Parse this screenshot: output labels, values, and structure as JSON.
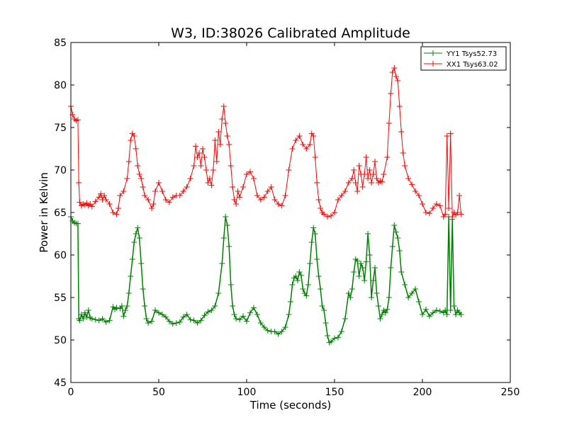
{
  "chart_data": {
    "type": "line",
    "title": "W3, ID:38026 Calibrated Amplitude",
    "xlabel": "Time (seconds)",
    "ylabel": "Power in Kelvin",
    "xlim": [
      0,
      250
    ],
    "ylim": [
      45,
      85
    ],
    "xticks": [
      0,
      50,
      100,
      150,
      200,
      250
    ],
    "yticks": [
      45,
      50,
      55,
      60,
      65,
      70,
      75,
      80,
      85
    ],
    "grid": false,
    "legend_position": "top-right",
    "marker": "plus",
    "series": [
      {
        "name": "YY1 Tsys52.73",
        "color": "#008000",
        "x": [
          0,
          1,
          2,
          3,
          4,
          4.5,
          5,
          6,
          7,
          8,
          9,
          10,
          11,
          12,
          14,
          16,
          18,
          20,
          22,
          24,
          25,
          26,
          28,
          29,
          30,
          31,
          32,
          33,
          34,
          35,
          36,
          37,
          38,
          39,
          40,
          41,
          42,
          43,
          44,
          46,
          48,
          50,
          52,
          54,
          56,
          58,
          60,
          62,
          64,
          66,
          68,
          70,
          72,
          74,
          76,
          78,
          80,
          82,
          84,
          86,
          87,
          88,
          89,
          90,
          91,
          92,
          93,
          94,
          96,
          98,
          100,
          102,
          104,
          106,
          108,
          110,
          112,
          114,
          116,
          118,
          120,
          122,
          124,
          125,
          126,
          127,
          128,
          129,
          130,
          131,
          132,
          133,
          134,
          135,
          136,
          137,
          138,
          139,
          140,
          141,
          142,
          143,
          144,
          145,
          146,
          147,
          148,
          150,
          152,
          154,
          156,
          158,
          159,
          160,
          161,
          162,
          163,
          164,
          165,
          166,
          167,
          168,
          169,
          170,
          171,
          172,
          173,
          174,
          175,
          176,
          177,
          178,
          179,
          180,
          181,
          182,
          183,
          184,
          185,
          186,
          187,
          188,
          190,
          192,
          194,
          196,
          198,
          200,
          202,
          204,
          206,
          208,
          210,
          212,
          213,
          214,
          215,
          216,
          217,
          218,
          219,
          220,
          221,
          222
        ],
        "values": [
          64.5,
          64.0,
          63.8,
          63.7,
          63.7,
          52.5,
          52.3,
          53.0,
          52.5,
          53.2,
          52.7,
          53.5,
          52.6,
          52.5,
          52.4,
          52.3,
          52.5,
          52.1,
          52.3,
          53.9,
          53.6,
          53.8,
          53.7,
          54.0,
          52.8,
          53.5,
          54.0,
          55.5,
          57.5,
          59.5,
          61.5,
          62.5,
          63.2,
          62.0,
          59.0,
          56.0,
          54.0,
          52.5,
          52.0,
          52.2,
          53.5,
          53.2,
          53.0,
          52.7,
          52.2,
          51.9,
          52.0,
          52.1,
          52.7,
          53.0,
          52.4,
          52.3,
          52.0,
          52.3,
          52.9,
          53.3,
          53.5,
          54.0,
          55.5,
          59.0,
          62.0,
          64.5,
          63.5,
          61.0,
          56.5,
          54.0,
          53.0,
          52.5,
          52.4,
          52.8,
          52.2,
          53.2,
          53.8,
          53.0,
          52.0,
          51.5,
          51.1,
          51.0,
          51.0,
          50.7,
          51.0,
          51.5,
          53.0,
          54.5,
          56.5,
          57.3,
          57.5,
          57.0,
          58.0,
          57.6,
          56.0,
          55.5,
          55.2,
          56.5,
          59.0,
          61.5,
          63.2,
          62.5,
          59.5,
          57.5,
          56.0,
          54.0,
          53.5,
          52.0,
          50.5,
          49.7,
          49.8,
          50.2,
          50.3,
          51.0,
          52.5,
          55.5,
          55.0,
          56.0,
          58.0,
          59.5,
          59.3,
          57.5,
          59.0,
          58.5,
          57.0,
          59.2,
          62.5,
          60.0,
          55.0,
          57.0,
          58.5,
          55.5,
          54.0,
          52.5,
          53.0,
          53.5,
          53.2,
          53.6,
          55.0,
          58.5,
          61.0,
          63.5,
          62.7,
          62.0,
          60.5,
          58.0,
          56.5,
          55.0,
          55.5,
          56.0,
          54.5,
          53.0,
          53.6,
          52.8,
          53.2,
          53.5,
          53.4,
          53.2,
          53.5,
          53.0,
          64.5,
          53.5,
          64.2,
          54.0,
          53.0,
          53.5,
          53.2,
          53.0
        ],
        "line_width": 1.5
      },
      {
        "name": "XX1 Tsys63.02",
        "color": "#ff0000",
        "x": [
          0,
          1,
          2,
          3,
          4,
          4.5,
          5,
          6,
          7,
          8,
          9,
          10,
          11,
          12,
          14,
          16,
          17,
          18,
          19,
          20,
          22,
          24,
          26,
          27,
          28,
          30,
          32,
          33,
          34,
          35,
          36,
          37,
          38,
          39,
          40,
          41,
          42,
          44,
          46,
          47,
          48,
          50,
          52,
          54,
          56,
          58,
          60,
          62,
          64,
          66,
          68,
          70,
          71,
          72,
          73,
          74,
          75,
          76,
          77,
          78,
          79,
          80,
          81,
          82,
          83,
          84,
          85,
          86,
          87,
          88,
          89,
          90,
          91,
          92,
          93,
          94,
          95,
          96,
          98,
          100,
          102,
          104,
          106,
          108,
          110,
          112,
          114,
          116,
          118,
          120,
          122,
          124,
          126,
          128,
          130,
          132,
          134,
          136,
          137,
          138,
          139,
          140,
          141,
          142,
          143,
          144,
          146,
          148,
          150,
          152,
          154,
          156,
          158,
          160,
          161,
          162,
          163,
          164,
          165,
          166,
          167,
          168,
          169,
          170,
          171,
          172,
          173,
          174,
          175,
          176,
          177,
          178,
          180,
          181,
          182,
          183,
          184,
          185,
          186,
          187,
          188,
          189,
          190,
          192,
          194,
          196,
          198,
          200,
          202,
          204,
          206,
          208,
          210,
          212,
          213,
          214,
          215,
          216,
          217,
          218,
          219,
          220,
          221,
          222
        ],
        "values": [
          77.5,
          76.5,
          76.0,
          75.8,
          75.9,
          68.5,
          66.2,
          65.8,
          66.0,
          65.9,
          66.1,
          65.8,
          66.0,
          65.7,
          66.3,
          66.8,
          67.2,
          66.5,
          67.0,
          66.5,
          66.0,
          65.0,
          64.8,
          65.5,
          67.0,
          67.5,
          69.0,
          71.0,
          73.5,
          74.3,
          74.0,
          72.5,
          70.5,
          69.5,
          69.0,
          68.0,
          67.0,
          66.5,
          65.5,
          66.0,
          67.5,
          68.5,
          67.5,
          66.5,
          66.2,
          66.8,
          67.0,
          67.0,
          67.5,
          68.0,
          69.0,
          70.5,
          72.8,
          71.5,
          72.0,
          70.5,
          72.5,
          71.5,
          70.0,
          68.5,
          69.0,
          68.2,
          70.0,
          73.5,
          71.0,
          74.5,
          73.0,
          76.0,
          77.5,
          75.5,
          74.0,
          73.0,
          70.5,
          68.0,
          66.5,
          66.0,
          67.5,
          66.8,
          68.0,
          69.5,
          69.8,
          69.0,
          67.0,
          66.5,
          66.8,
          67.5,
          68.0,
          66.5,
          66.0,
          65.8,
          67.0,
          70.0,
          72.5,
          73.5,
          74.0,
          73.0,
          72.5,
          73.0,
          74.3,
          74.0,
          71.5,
          68.5,
          66.5,
          65.5,
          65.0,
          64.8,
          64.5,
          64.6,
          65.0,
          66.5,
          67.0,
          67.5,
          68.5,
          69.0,
          70.0,
          68.5,
          67.5,
          70.5,
          69.5,
          68.0,
          69.5,
          71.5,
          69.0,
          70.0,
          68.5,
          69.5,
          71.0,
          69.0,
          68.5,
          68.7,
          68.6,
          69.5,
          71.5,
          75.5,
          79.0,
          81.5,
          82.0,
          81.0,
          80.5,
          77.5,
          74.5,
          72.0,
          70.5,
          69.0,
          68.3,
          67.5,
          67.0,
          66.0,
          65.0,
          64.9,
          65.5,
          66.0,
          65.8,
          64.5,
          64.8,
          74.0,
          65.5,
          74.3,
          64.5,
          65.0,
          64.7,
          65.0,
          67.0,
          64.8
        ],
        "line_width": 1.0
      }
    ]
  }
}
